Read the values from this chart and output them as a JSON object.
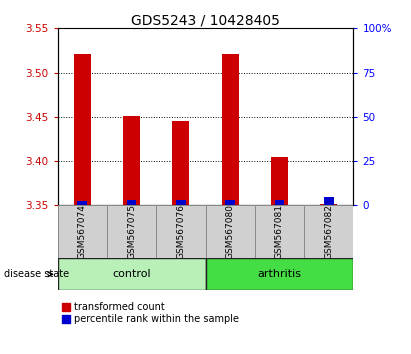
{
  "title": "GDS5243 / 10428405",
  "samples": [
    "GSM567074",
    "GSM567075",
    "GSM567076",
    "GSM567080",
    "GSM567081",
    "GSM567082"
  ],
  "red_values": [
    3.521,
    3.451,
    3.445,
    3.521,
    3.405,
    3.352
  ],
  "blue_values": [
    2.5,
    3.0,
    2.8,
    3.0,
    3.2,
    4.5
  ],
  "ylim_left": [
    3.35,
    3.55
  ],
  "ylim_right": [
    0,
    100
  ],
  "yticks_left": [
    3.35,
    3.4,
    3.45,
    3.5,
    3.55
  ],
  "yticks_right": [
    0,
    25,
    50,
    75,
    100
  ],
  "ytick_labels_right": [
    "0",
    "25",
    "50",
    "75",
    "100%"
  ],
  "group_control": {
    "label": "control",
    "indices": [
      0,
      1,
      2
    ],
    "color": "#b8f0b8"
  },
  "group_arthritis": {
    "label": "arthritis",
    "indices": [
      3,
      4,
      5
    ],
    "color": "#44dd44"
  },
  "bar_width": 0.35,
  "red_color": "#cc0000",
  "blue_color": "#0000cc",
  "baseline": 3.35,
  "sample_box_color": "#d0d0d0",
  "legend_red_label": "transformed count",
  "legend_blue_label": "percentile rank within the sample",
  "disease_state_label": "disease state",
  "title_fontsize": 10,
  "tick_fontsize": 7.5
}
